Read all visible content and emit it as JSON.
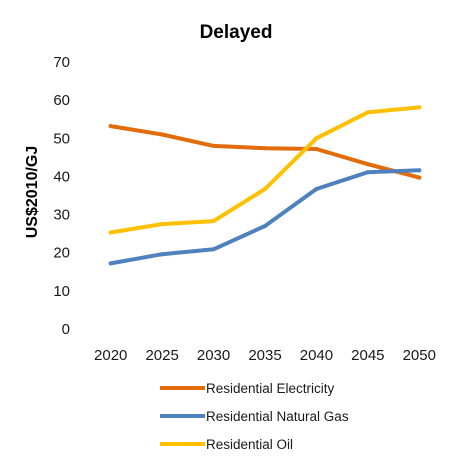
{
  "chart_data": {
    "type": "line",
    "title": "Delayed",
    "xlabel": "",
    "ylabel": "US$2010/GJ",
    "x": [
      2020,
      2025,
      2030,
      2035,
      2040,
      2045,
      2050
    ],
    "ylim": [
      0,
      70
    ],
    "yticks": [
      0,
      10,
      20,
      30,
      40,
      50,
      60,
      70
    ],
    "grid": false,
    "legend_position": "bottom",
    "series": [
      {
        "name": "Residential Electricity",
        "color": "#E36C0A",
        "values": [
          53.2,
          51.0,
          48.0,
          47.4,
          47.2,
          43.2,
          39.7
        ]
      },
      {
        "name": "Residential Natural Gas",
        "color": "#4F81BD",
        "values": [
          17.2,
          19.6,
          20.9,
          27.0,
          36.7,
          41.1,
          41.6
        ]
      },
      {
        "name": "Residential Oil",
        "color": "#FFC000",
        "values": [
          25.3,
          27.5,
          28.3,
          36.7,
          50.0,
          56.8,
          58.1
        ]
      }
    ]
  }
}
